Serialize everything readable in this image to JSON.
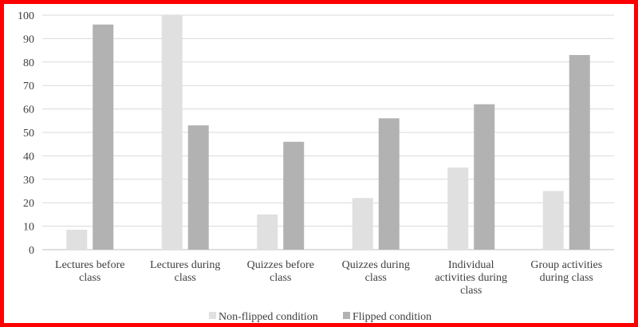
{
  "chart_data": {
    "type": "bar",
    "categories": [
      [
        "Lectures  before",
        "class"
      ],
      [
        "Lectures  during",
        "class"
      ],
      [
        "Quizzes before",
        "class"
      ],
      [
        "Quizzes during",
        "class"
      ],
      [
        "Individual",
        "activities during",
        "class"
      ],
      [
        "Group activities",
        "during class"
      ]
    ],
    "series": [
      {
        "name": "Non-flipped condition",
        "color": "#e0e0e0",
        "values": [
          8.5,
          100,
          15,
          22,
          35,
          25
        ]
      },
      {
        "name": "Flipped condition",
        "color": "#b2b2b2",
        "values": [
          96,
          53,
          46,
          56,
          62,
          83
        ]
      }
    ],
    "ylim": [
      0,
      100
    ],
    "yticks": [
      0,
      10,
      20,
      30,
      40,
      50,
      60,
      70,
      80,
      90,
      100
    ],
    "grid": true,
    "legend_position": "bottom"
  }
}
